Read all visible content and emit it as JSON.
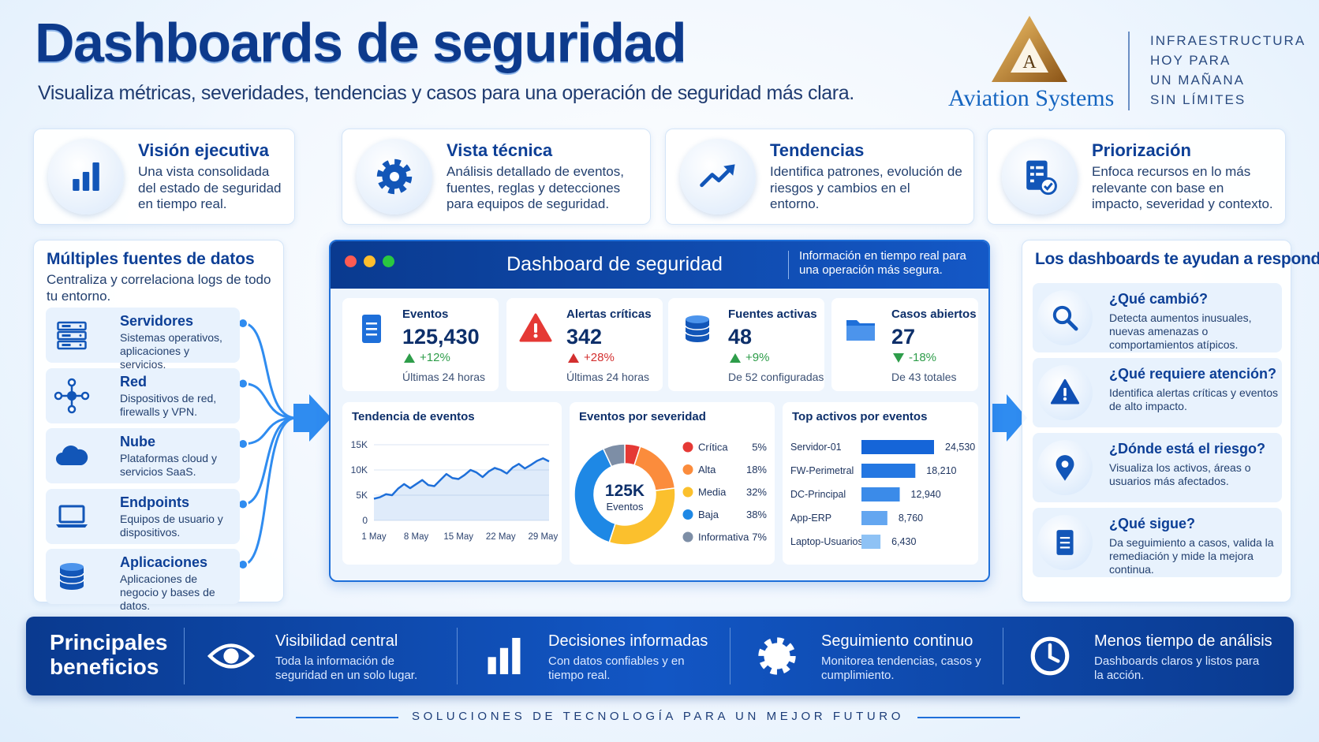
{
  "header": {
    "title": "Dashboards de seguridad",
    "subtitle": "Visualiza métricas, severidades, tendencias y casos para una operación de seguridad más clara.",
    "logo_letter": "A",
    "brand": "Aviation Systems",
    "tagline": [
      "INFRAESTRUCTURA",
      "HOY PARA",
      "UN MAÑANA",
      "SIN LÍMITES"
    ]
  },
  "top_cards": [
    {
      "title": "Visión ejecutiva",
      "text": "Una vista consolidada del estado de seguridad en tiempo real."
    },
    {
      "title": "Vista técnica",
      "text": "Análisis detallado de eventos, fuentes, reglas y detecciones para equipos de seguridad."
    },
    {
      "title": "Tendencias",
      "text": "Identifica patrones, evolución de riesgos y cambios en el entorno."
    },
    {
      "title": "Priorización",
      "text": "Enfoca recursos en lo más relevante con base en impacto, severidad y contexto."
    }
  ],
  "sources": {
    "title": "Múltiples fuentes de datos",
    "text": "Centraliza y correlaciona logs de todo tu entorno.",
    "items": [
      {
        "title": "Servidores",
        "text": "Sistemas operativos, aplicaciones y servicios."
      },
      {
        "title": "Red",
        "text": "Dispositivos de red, firewalls y VPN."
      },
      {
        "title": "Nube",
        "text": "Plataformas cloud y servicios SaaS."
      },
      {
        "title": "Endpoints",
        "text": "Equipos de usuario y dispositivos."
      },
      {
        "title": "Aplicaciones",
        "text": "Aplicaciones de negocio y bases de datos."
      }
    ]
  },
  "dashboard": {
    "title": "Dashboard de seguridad",
    "info": "Información en tiempo real para una operación más segura.",
    "kpis": [
      {
        "label": "Eventos",
        "value": "125,430",
        "change": "+12%",
        "note": "Últimas 24 horas"
      },
      {
        "label": "Alertas críticas",
        "value": "342",
        "change": "+28%",
        "note": "Últimas 24 horas"
      },
      {
        "label": "Fuentes activas",
        "value": "48",
        "change": "+9%",
        "note": "De 52 configuradas"
      },
      {
        "label": "Casos abiertos",
        "value": "27",
        "change": "-18%",
        "note": "De 43 totales"
      }
    ]
  },
  "chart_data": [
    {
      "type": "line",
      "title": "Tendencia de eventos",
      "categories": [
        "1 May",
        null,
        null,
        null,
        null,
        null,
        null,
        "8 May",
        null,
        null,
        null,
        null,
        null,
        null,
        "15 May",
        null,
        null,
        null,
        null,
        null,
        null,
        "22 May",
        null,
        null,
        null,
        null,
        null,
        null,
        "29 May",
        null
      ],
      "values": [
        4300,
        4600,
        5200,
        5000,
        6300,
        7200,
        6400,
        7200,
        8000,
        7000,
        6800,
        8000,
        9200,
        8400,
        8200,
        9000,
        10000,
        9500,
        8600,
        9700,
        10400,
        10000,
        9300,
        10500,
        11200,
        10300,
        11000,
        11800,
        12300,
        11700
      ],
      "color": "#1e6fd9",
      "ylim": [
        0,
        15000
      ],
      "yticks": [
        0,
        {
          "value": 5000,
          "label": "5K"
        },
        {
          "value": 10000,
          "label": "10K"
        },
        {
          "value": 15000,
          "label": "15K"
        }
      ],
      "grid": true
    },
    {
      "type": "pie",
      "title": "Eventos por severidad",
      "center_label": "125K",
      "center_sublabel": "Eventos",
      "categories": [
        "Crítica",
        "Alta",
        "Media",
        "Baja",
        "Informativa"
      ],
      "values": [
        5,
        18,
        32,
        38,
        7
      ],
      "value_labels": [
        "5%",
        "18%",
        "32%",
        "38%",
        "7%"
      ],
      "colors": [
        "#e53935",
        "#fb8c3c",
        "#fbc02d",
        "#1e88e5",
        "#7d8ea6"
      ]
    },
    {
      "type": "bar",
      "title": "Top activos por eventos",
      "orientation": "horizontal",
      "categories": [
        "Servidor-01",
        "FW-Perimetral",
        "DC-Principal",
        "App-ERP",
        "Laptop-Usuarios"
      ],
      "values": [
        24530,
        18210,
        12940,
        8760,
        6430
      ],
      "value_labels": [
        "24,530",
        "18,210",
        "12,940",
        "8,760",
        "6,430"
      ],
      "colors": [
        "#1565d8",
        "#2477e2",
        "#3b8be9",
        "#63a6f0",
        "#8ec2f5"
      ]
    }
  ],
  "questions": {
    "title": "Los dashboards te ayudan a responder",
    "items": [
      {
        "title": "¿Qué cambió?",
        "text": "Detecta aumentos inusuales, nuevas amenazas o comportamientos atípicos."
      },
      {
        "title": "¿Qué requiere atención?",
        "text": "Identifica alertas críticas y eventos de alto impacto."
      },
      {
        "title": "¿Dónde está el riesgo?",
        "text": "Visualiza los activos, áreas o usuarios más afectados."
      },
      {
        "title": "¿Qué sigue?",
        "text": "Da seguimiento a casos, valida la remediación y mide la mejora continua."
      }
    ]
  },
  "benefits": {
    "title": "Principales beneficios",
    "items": [
      {
        "title": "Visibilidad central",
        "text": "Toda la información de seguridad en un solo lugar."
      },
      {
        "title": "Decisiones informadas",
        "text": "Con datos confiables y en tiempo real."
      },
      {
        "title": "Seguimiento continuo",
        "text": "Monitorea tendencias, casos y cumplimiento."
      },
      {
        "title": "Menos tiempo de análisis",
        "text": "Dashboards claros y listos para la acción."
      }
    ]
  },
  "footer": "SOLUCIONES DE TECNOLOGÍA PARA UN MEJOR FUTURO"
}
